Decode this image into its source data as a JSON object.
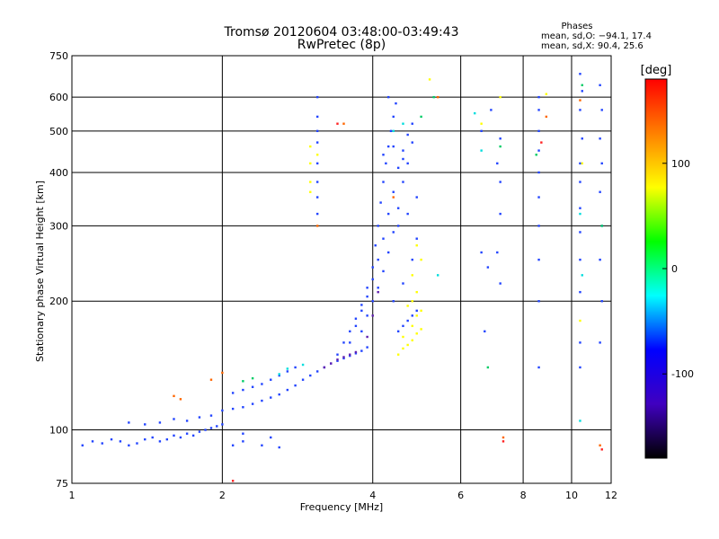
{
  "chart_data": {
    "type": "scatter",
    "title": "Tromsø 20120604 03:48:00-03:49:43",
    "subtitle": "RwPretec (8p)",
    "xlabel": "Frequency [MHz]",
    "ylabel": "Stationary phase Virtual Height [km]",
    "x_scale": "log",
    "y_scale": "log",
    "xlim": [
      1,
      12
    ],
    "ylim": [
      75,
      750
    ],
    "x_ticks": [
      1,
      2,
      4,
      6,
      8,
      10,
      12
    ],
    "y_ticks": [
      75,
      100,
      200,
      300,
      400,
      500,
      600,
      750
    ],
    "grid": true,
    "stats_title": "Phases",
    "stats_lines": [
      "mean, sd,O: −94.1, 17.4",
      "mean, sd,X:  90.4, 25.6"
    ],
    "colorbar": {
      "label": "[deg]",
      "range": [
        -180,
        180
      ],
      "ticks": [
        100,
        0,
        -100
      ],
      "colors": [
        "#ff0000",
        "#ff8000",
        "#ffff00",
        "#00ff00",
        "#00ffff",
        "#0000ff",
        "#4000c0",
        "#000000"
      ]
    },
    "series": [
      {
        "values_note": "",
        "color": "#2244ff",
        "points": [
          [
            1.05,
            92
          ],
          [
            1.1,
            94
          ],
          [
            1.15,
            93
          ],
          [
            1.2,
            95
          ],
          [
            1.25,
            94
          ],
          [
            1.3,
            92
          ],
          [
            1.35,
            93
          ],
          [
            1.4,
            95
          ],
          [
            1.45,
            96
          ],
          [
            1.5,
            94
          ],
          [
            1.55,
            95
          ],
          [
            1.6,
            97
          ],
          [
            1.65,
            96
          ],
          [
            1.7,
            98
          ],
          [
            1.75,
            97
          ],
          [
            1.8,
            99
          ],
          [
            1.85,
            100
          ],
          [
            1.9,
            101
          ],
          [
            1.95,
            102
          ],
          [
            2.0,
            103
          ],
          [
            1.3,
            104
          ],
          [
            1.4,
            103
          ],
          [
            1.5,
            104
          ],
          [
            1.6,
            106
          ],
          [
            1.7,
            105
          ],
          [
            1.8,
            107
          ],
          [
            1.9,
            108
          ],
          [
            2.0,
            111
          ],
          [
            2.1,
            112
          ],
          [
            2.2,
            113
          ],
          [
            2.3,
            115
          ],
          [
            2.4,
            117
          ],
          [
            2.5,
            119
          ],
          [
            2.6,
            121
          ],
          [
            2.7,
            124
          ],
          [
            2.8,
            127
          ],
          [
            2.9,
            131
          ],
          [
            3.0,
            134
          ],
          [
            3.1,
            137
          ],
          [
            3.2,
            140
          ],
          [
            3.3,
            143
          ],
          [
            3.4,
            145
          ],
          [
            3.5,
            147
          ],
          [
            3.6,
            149
          ],
          [
            3.7,
            151
          ],
          [
            3.8,
            153
          ],
          [
            3.9,
            156
          ],
          [
            2.1,
            122
          ],
          [
            2.2,
            124
          ],
          [
            2.3,
            126
          ],
          [
            2.4,
            128
          ],
          [
            2.5,
            131
          ],
          [
            2.6,
            134
          ],
          [
            2.7,
            137
          ],
          [
            2.8,
            140
          ],
          [
            2.1,
            92
          ],
          [
            2.2,
            94
          ],
          [
            2.4,
            92
          ],
          [
            2.6,
            91
          ],
          [
            2.2,
            98
          ],
          [
            2.5,
            96
          ],
          [
            3.4,
            150
          ],
          [
            3.5,
            160
          ],
          [
            3.6,
            170
          ],
          [
            3.7,
            182
          ],
          [
            3.8,
            196
          ],
          [
            3.9,
            215
          ],
          [
            4.0,
            240
          ],
          [
            4.05,
            270
          ],
          [
            4.1,
            300
          ],
          [
            4.15,
            340
          ],
          [
            4.2,
            380
          ],
          [
            4.25,
            420
          ],
          [
            4.3,
            460
          ],
          [
            4.35,
            500
          ],
          [
            4.4,
            540
          ],
          [
            4.45,
            580
          ],
          [
            4.3,
            600
          ],
          [
            3.6,
            160
          ],
          [
            3.7,
            175
          ],
          [
            3.8,
            190
          ],
          [
            3.9,
            205
          ],
          [
            4.0,
            225
          ],
          [
            4.1,
            250
          ],
          [
            4.2,
            280
          ],
          [
            4.3,
            320
          ],
          [
            4.4,
            360
          ],
          [
            4.5,
            410
          ],
          [
            4.6,
            450
          ],
          [
            4.7,
            490
          ],
          [
            4.8,
            520
          ],
          [
            3.8,
            170
          ],
          [
            3.9,
            185
          ],
          [
            4.0,
            200
          ],
          [
            4.1,
            215
          ],
          [
            4.2,
            235
          ],
          [
            4.3,
            260
          ],
          [
            4.4,
            290
          ],
          [
            4.5,
            330
          ],
          [
            4.6,
            380
          ],
          [
            4.7,
            420
          ],
          [
            4.8,
            470
          ],
          [
            4.5,
            170
          ],
          [
            4.6,
            175
          ],
          [
            4.7,
            180
          ],
          [
            4.8,
            185
          ],
          [
            4.9,
            190
          ],
          [
            4.4,
            200
          ],
          [
            4.6,
            220
          ],
          [
            4.8,
            250
          ],
          [
            4.9,
            280
          ],
          [
            4.5,
            300
          ],
          [
            4.7,
            320
          ],
          [
            4.9,
            350
          ],
          [
            4.2,
            440
          ],
          [
            4.4,
            460
          ],
          [
            4.6,
            430
          ],
          [
            3.1,
            600
          ],
          [
            3.1,
            540
          ],
          [
            3.1,
            500
          ],
          [
            3.1,
            470
          ],
          [
            3.1,
            420
          ],
          [
            3.1,
            380
          ],
          [
            3.1,
            350
          ],
          [
            3.1,
            320
          ],
          [
            6.6,
            500
          ],
          [
            6.9,
            560
          ],
          [
            7.2,
            480
          ],
          [
            7.1,
            420
          ],
          [
            7.2,
            380
          ],
          [
            7.2,
            320
          ],
          [
            7.1,
            260
          ],
          [
            6.8,
            240
          ],
          [
            7.2,
            220
          ],
          [
            6.6,
            260
          ],
          [
            6.7,
            170
          ],
          [
            8.6,
            600
          ],
          [
            8.6,
            560
          ],
          [
            8.6,
            500
          ],
          [
            8.6,
            450
          ],
          [
            8.6,
            400
          ],
          [
            8.6,
            350
          ],
          [
            8.6,
            300
          ],
          [
            8.6,
            250
          ],
          [
            8.6,
            200
          ],
          [
            8.6,
            140
          ],
          [
            10.4,
            680
          ],
          [
            10.5,
            620
          ],
          [
            10.4,
            560
          ],
          [
            10.5,
            480
          ],
          [
            10.4,
            420
          ],
          [
            10.4,
            380
          ],
          [
            10.4,
            330
          ],
          [
            10.4,
            290
          ],
          [
            10.4,
            250
          ],
          [
            10.4,
            210
          ],
          [
            10.4,
            160
          ],
          [
            10.4,
            140
          ],
          [
            11.4,
            640
          ],
          [
            11.5,
            560
          ],
          [
            11.4,
            480
          ],
          [
            11.5,
            420
          ],
          [
            11.4,
            360
          ],
          [
            11.5,
            300
          ],
          [
            11.4,
            250
          ],
          [
            11.5,
            200
          ],
          [
            11.4,
            160
          ]
        ]
      },
      {
        "values_note": "",
        "color": "#6020b0",
        "points": [
          [
            3.4,
            146
          ],
          [
            3.5,
            148
          ],
          [
            3.6,
            150
          ],
          [
            3.7,
            152
          ],
          [
            3.3,
            143
          ],
          [
            3.2,
            140
          ],
          [
            3.9,
            165
          ],
          [
            4.0,
            185
          ],
          [
            4.1,
            210
          ]
        ]
      },
      {
        "values_note": "",
        "color": "#ffff00",
        "points": [
          [
            4.5,
            150
          ],
          [
            4.6,
            155
          ],
          [
            4.7,
            158
          ],
          [
            4.8,
            162
          ],
          [
            4.9,
            168
          ],
          [
            5.0,
            172
          ],
          [
            4.6,
            165
          ],
          [
            4.8,
            175
          ],
          [
            4.9,
            185
          ],
          [
            5.0,
            190
          ],
          [
            4.7,
            195
          ],
          [
            4.8,
            200
          ],
          [
            4.9,
            210
          ],
          [
            4.8,
            230
          ],
          [
            5.0,
            250
          ],
          [
            4.9,
            270
          ],
          [
            3.0,
            460
          ],
          [
            3.0,
            420
          ],
          [
            3.0,
            380
          ],
          [
            3.1,
            440
          ],
          [
            3.0,
            360
          ],
          [
            5.2,
            660
          ],
          [
            6.6,
            520
          ],
          [
            7.2,
            600
          ],
          [
            8.9,
            610
          ],
          [
            10.5,
            420
          ],
          [
            10.4,
            180
          ]
        ]
      },
      {
        "values_note": "",
        "color": "#00cc66",
        "points": [
          [
            5.0,
            540
          ],
          [
            5.3,
            600
          ],
          [
            7.2,
            460
          ],
          [
            8.5,
            440
          ],
          [
            10.5,
            640
          ],
          [
            11.5,
            300
          ],
          [
            6.8,
            140
          ],
          [
            2.2,
            130
          ],
          [
            2.3,
            132
          ]
        ]
      },
      {
        "values_note": "",
        "color": "#00dddd",
        "points": [
          [
            2.6,
            135
          ],
          [
            2.7,
            139
          ],
          [
            2.9,
            142
          ],
          [
            6.6,
            450
          ],
          [
            6.4,
            550
          ],
          [
            10.4,
            320
          ],
          [
            10.5,
            230
          ],
          [
            10.4,
            105
          ],
          [
            4.6,
            520
          ],
          [
            4.4,
            500
          ],
          [
            5.4,
            230
          ]
        ]
      },
      {
        "values_note": "",
        "color": "#ff6600",
        "points": [
          [
            1.6,
            120
          ],
          [
            1.65,
            118
          ],
          [
            1.9,
            131
          ],
          [
            2.0,
            136
          ],
          [
            3.1,
            300
          ],
          [
            3.5,
            520
          ],
          [
            5.4,
            600
          ],
          [
            7.3,
            96
          ],
          [
            8.9,
            540
          ],
          [
            10.4,
            590
          ],
          [
            11.4,
            92
          ],
          [
            4.4,
            350
          ]
        ]
      },
      {
        "values_note": "",
        "color": "#ff2222",
        "points": [
          [
            3.4,
            520
          ],
          [
            7.3,
            94
          ],
          [
            11.5,
            90
          ],
          [
            8.7,
            470
          ],
          [
            2.1,
            76
          ]
        ]
      }
    ]
  }
}
